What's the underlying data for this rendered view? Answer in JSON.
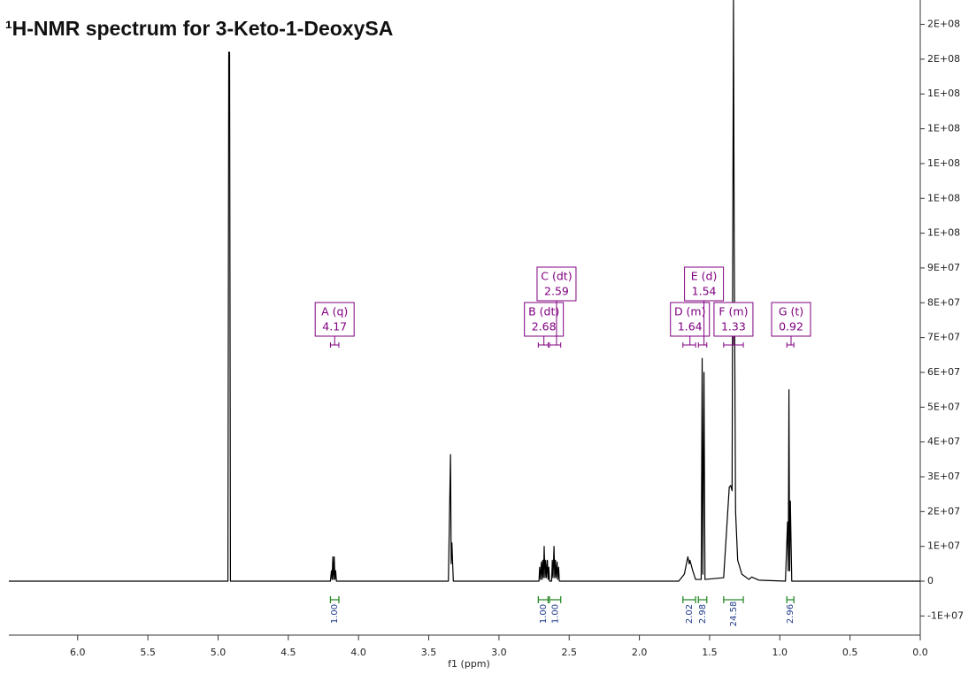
{
  "chart_data": {
    "type": "line",
    "title": "¹H-NMR spectrum for 3-Keto-1-DeoxySA",
    "xlabel": "f1 (ppm)",
    "xlim": [
      6.49,
      0
    ],
    "ylim": [
      -15500000,
      167000000
    ],
    "xticks": [
      {
        "value": 6,
        "label": "6.0"
      },
      5.5,
      {
        "value": 5,
        "label": "5.0"
      },
      4.5,
      {
        "value": 4,
        "label": "4.0"
      },
      3.5,
      {
        "value": 3,
        "label": "3.0"
      },
      2.5,
      {
        "value": 2,
        "label": "2.0"
      },
      1.5,
      {
        "value": 1,
        "label": "1.0"
      },
      0.5,
      {
        "value": 0,
        "label": "0.0"
      }
    ],
    "yticks": [
      {
        "value": 160000000,
        "label": "2E+08"
      },
      {
        "value": 150000000,
        "label": "2E+08"
      },
      {
        "value": 140000000,
        "label": "1E+08"
      },
      {
        "value": 130000000,
        "label": "1E+08"
      },
      {
        "value": 120000000,
        "label": "1E+08"
      },
      {
        "value": 110000000,
        "label": "1E+08"
      },
      {
        "value": 100000000,
        "label": "1E+08"
      },
      {
        "value": 90000000,
        "label": "9E+07"
      },
      {
        "value": 80000000,
        "label": "8E+07"
      },
      {
        "value": 70000000,
        "label": "7E+07"
      },
      {
        "value": 60000000,
        "label": "6E+07"
      },
      {
        "value": 50000000,
        "label": "5E+07"
      },
      {
        "value": 40000000,
        "label": "4E+07"
      },
      {
        "value": 30000000,
        "label": "3E+07"
      },
      {
        "value": 20000000,
        "label": "2E+07"
      },
      {
        "value": 10000000,
        "label": "1E+07"
      },
      0,
      {
        "value": -10000000,
        "label": "-1E+07"
      }
    ],
    "series": [
      {
        "color": "#000000",
        "x": [
          6.49,
          5.0,
          4.93,
          4.924,
          4.921,
          4.918,
          4.912,
          4.2,
          4.193,
          4.188,
          4.183,
          4.178,
          4.173,
          4.168,
          4.163,
          4.157,
          3.36,
          3.345,
          3.34,
          3.335,
          3.325,
          2.715,
          2.71,
          2.705,
          2.698,
          2.693,
          2.688,
          2.683,
          2.678,
          2.672,
          2.667,
          2.662,
          2.655,
          2.65,
          2.645,
          2.64,
          2.625,
          2.62,
          2.615,
          2.608,
          2.603,
          2.598,
          2.593,
          2.586,
          2.581,
          2.575,
          2.57,
          1.72,
          1.68,
          1.655,
          1.645,
          1.64,
          1.62,
          1.6,
          1.56,
          1.553,
          1.548,
          1.54,
          1.533,
          1.4,
          1.36,
          1.35,
          1.34,
          1.335,
          1.33,
          1.325,
          1.315,
          1.3,
          1.27,
          1.22,
          1.2,
          1.15,
          0.96,
          0.945,
          0.94,
          0.935,
          0.93,
          0.925,
          0.915,
          0.85,
          0
        ],
        "values": [
          0,
          0,
          0,
          152000000,
          145000000,
          152000000,
          0,
          0,
          3000000,
          500000,
          7000000,
          500000,
          7000000,
          500000,
          3000000,
          0,
          0,
          36400000,
          5000000,
          11000000,
          0,
          0,
          4000000,
          500000,
          5500000,
          500000,
          6000000,
          1000000,
          10000000,
          1000000,
          6000000,
          1000000,
          6000000,
          500000,
          4000000,
          0,
          0,
          6000000,
          1000000,
          10000000,
          1000000,
          6000000,
          1000000,
          5500000,
          500000,
          4000000,
          0,
          0,
          2000000,
          7000000,
          5000000,
          6000000,
          3000000,
          500000,
          500000,
          64000000,
          2000000,
          60000000,
          500000,
          1000000,
          27000000,
          27500000,
          26000000,
          100000000,
          167000000,
          100000000,
          20000000,
          6000000,
          2000000,
          500000,
          1200000,
          300000,
          0,
          17000000,
          3000000,
          55000000,
          3000000,
          23000000,
          0,
          0,
          0
        ]
      }
    ],
    "multiplets": [
      {
        "label": "A (q)",
        "shift": 4.17,
        "range": [
          4.2,
          4.14
        ],
        "integral": {
          "value": 1,
          "label": "1.00"
        }
      },
      {
        "label": "B (dt)",
        "shift": 2.68,
        "range": [
          2.72,
          2.65
        ],
        "integral": {
          "value": 1,
          "label": "1.00"
        }
      },
      {
        "label": "C (dt)",
        "shift": 2.59,
        "range": [
          2.64,
          2.56
        ],
        "integral": {
          "value": 1,
          "label": "1.00"
        }
      },
      {
        "label": "D (m)",
        "shift": 1.64,
        "range": [
          1.69,
          1.6
        ],
        "integral": {
          "value": 2.02,
          "label": "2.02"
        }
      },
      {
        "label": "E (d)",
        "shift": 1.54,
        "range": [
          1.58,
          1.52
        ],
        "integral": {
          "value": 2.98,
          "label": "2.98"
        }
      },
      {
        "label": "F (m)",
        "shift": 1.33,
        "range": [
          1.4,
          1.26
        ],
        "integral": {
          "value": 24.58,
          "label": "24.58"
        }
      },
      {
        "label": "G (t)",
        "shift": 0.92,
        "range": [
          0.95,
          0.9
        ],
        "integral": {
          "value": 2.96,
          "label": "2.96"
        }
      }
    ]
  }
}
